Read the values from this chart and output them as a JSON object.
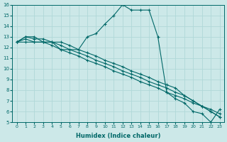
{
  "xlabel": "Humidex (Indice chaleur)",
  "ylabel": "",
  "xlim": [
    -0.5,
    23.5
  ],
  "ylim": [
    5,
    16
  ],
  "xticks": [
    0,
    1,
    2,
    3,
    4,
    5,
    6,
    7,
    8,
    9,
    10,
    11,
    12,
    13,
    14,
    15,
    16,
    17,
    18,
    19,
    20,
    21,
    22,
    23
  ],
  "yticks": [
    5,
    6,
    7,
    8,
    9,
    10,
    11,
    12,
    13,
    14,
    15,
    16
  ],
  "background_color": "#cce8e8",
  "grid_color": "#b0d8d8",
  "line_color": "#006868",
  "series": [
    {
      "x": [
        0,
        1,
        2,
        3,
        4,
        5,
        6,
        7,
        8,
        9,
        10,
        11,
        12,
        13,
        14,
        15,
        16,
        17,
        18,
        19,
        20,
        21,
        22,
        23
      ],
      "y": [
        12.5,
        13.0,
        13.0,
        12.5,
        12.5,
        11.8,
        11.8,
        11.8,
        13.0,
        13.3,
        14.2,
        15.0,
        16.0,
        15.5,
        15.5,
        15.5,
        13.0,
        7.8,
        7.2,
        6.8,
        6.0,
        5.8,
        5.0,
        6.2
      ]
    },
    {
      "x": [
        0,
        1,
        2,
        3,
        4,
        5,
        6,
        7,
        8,
        9,
        10,
        11,
        12,
        13,
        14,
        15,
        16,
        17,
        18,
        19,
        20,
        21,
        22,
        23
      ],
      "y": [
        12.5,
        12.5,
        12.5,
        12.5,
        12.2,
        11.8,
        11.5,
        11.2,
        10.8,
        10.5,
        10.2,
        9.8,
        9.5,
        9.2,
        8.8,
        8.5,
        8.2,
        7.8,
        7.5,
        7.2,
        6.8,
        6.5,
        6.2,
        5.8
      ]
    },
    {
      "x": [
        0,
        1,
        2,
        3,
        4,
        5,
        6,
        7,
        8,
        9,
        10,
        11,
        12,
        13,
        14,
        15,
        16,
        17,
        18,
        19,
        20,
        21,
        22,
        23
      ],
      "y": [
        12.5,
        12.8,
        12.5,
        12.5,
        12.5,
        12.2,
        11.8,
        11.5,
        11.2,
        10.8,
        10.5,
        10.2,
        9.8,
        9.5,
        9.2,
        8.8,
        8.5,
        8.2,
        7.8,
        7.5,
        7.0,
        6.5,
        6.0,
        5.5
      ]
    },
    {
      "x": [
        0,
        1,
        2,
        3,
        4,
        5,
        6,
        7,
        8,
        9,
        10,
        11,
        12,
        13,
        14,
        15,
        16,
        17,
        18,
        19,
        20,
        21,
        22,
        23
      ],
      "y": [
        12.5,
        13.0,
        12.8,
        12.8,
        12.5,
        12.5,
        12.2,
        11.8,
        11.5,
        11.2,
        10.8,
        10.5,
        10.2,
        9.8,
        9.5,
        9.2,
        8.8,
        8.5,
        8.2,
        7.5,
        7.0,
        6.5,
        6.0,
        5.5
      ]
    }
  ]
}
